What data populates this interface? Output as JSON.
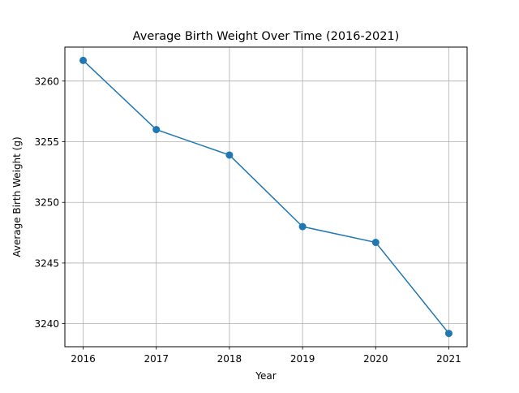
{
  "chart_data": {
    "type": "line",
    "title": "Average Birth Weight Over Time (2016-2021)",
    "xlabel": "Year",
    "ylabel": "Average Birth Weight (g)",
    "x": [
      "2016",
      "2017",
      "2018",
      "2019",
      "2020",
      "2021"
    ],
    "series": [
      {
        "values": [
          3261.7,
          3256.0,
          3253.9,
          3248.0,
          3246.7,
          3239.2
        ],
        "color": "#1f77b4",
        "marker": "circle"
      }
    ],
    "ylim": [
      3238.1,
      3262.8
    ],
    "yticks": [
      3240,
      3245,
      3250,
      3255,
      3260
    ],
    "ytick_labels": [
      "3240",
      "3245",
      "3250",
      "3255",
      "3260"
    ],
    "grid": true
  }
}
